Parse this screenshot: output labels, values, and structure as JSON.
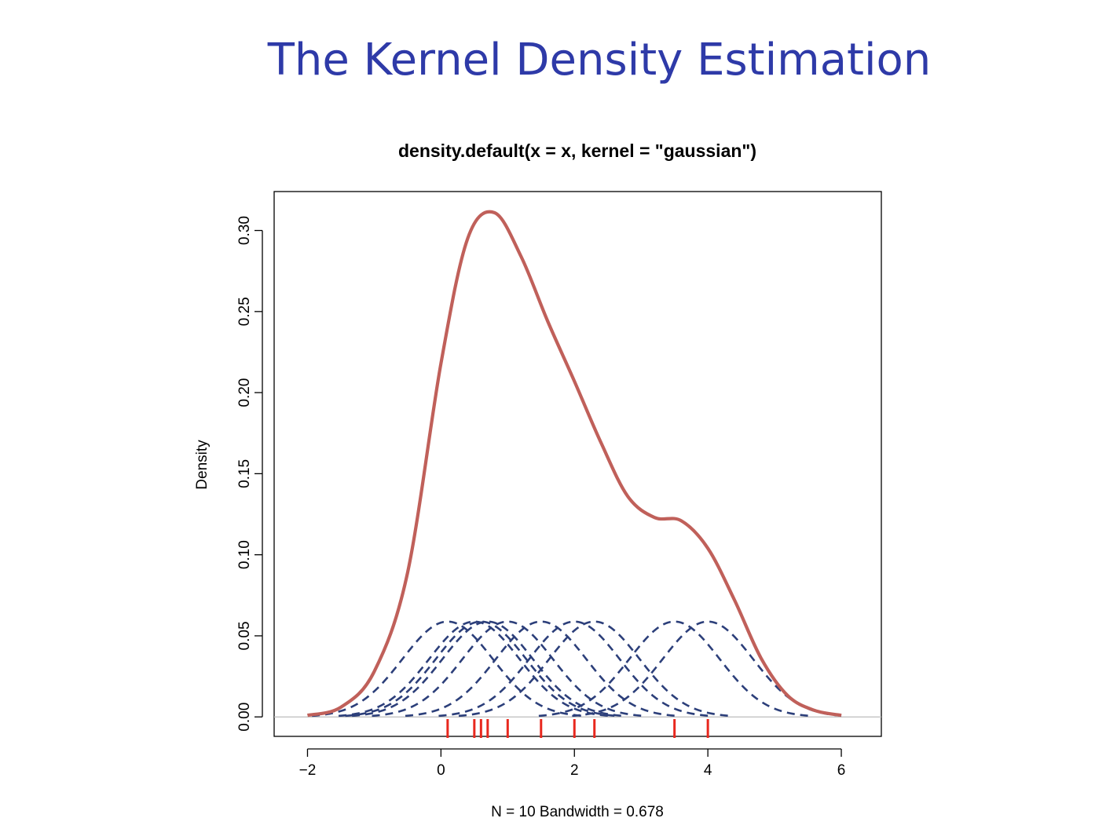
{
  "slide": {
    "title": "The Kernel Density Estimation"
  },
  "chart_data": {
    "type": "line",
    "title": "density.default(x = x, kernel = \"gaussian\")",
    "xlabel": "N = 10   Bandwidth = 0.678",
    "ylabel": "Density",
    "xlim": [
      -2.5,
      6.6
    ],
    "ylim": [
      -0.012,
      0.324
    ],
    "x_ticks": [
      -2,
      0,
      2,
      4,
      6
    ],
    "x_tick_labels": [
      "−2",
      "0",
      "2",
      "4",
      "6"
    ],
    "y_ticks": [
      0.0,
      0.05,
      0.1,
      0.15,
      0.2,
      0.25,
      0.3
    ],
    "y_tick_labels": [
      "0.00",
      "0.05",
      "0.10",
      "0.15",
      "0.20",
      "0.25",
      "0.30"
    ],
    "grid": false,
    "baseline": 0,
    "observations": [
      0.1,
      0.5,
      0.6,
      0.7,
      1.0,
      1.5,
      2.0,
      2.3,
      3.5,
      4.0
    ],
    "bandwidth": 0.678,
    "kernel_height": 0.0588,
    "density": {
      "x": [
        -2.0,
        -1.5,
        -1.0,
        -0.5,
        0.0,
        0.4,
        0.8,
        1.2,
        1.6,
        2.0,
        2.4,
        2.8,
        3.2,
        3.6,
        4.0,
        4.4,
        4.8,
        5.2,
        5.6,
        6.0
      ],
      "y": [
        0.001,
        0.006,
        0.028,
        0.089,
        0.218,
        0.295,
        0.311,
        0.284,
        0.244,
        0.207,
        0.169,
        0.136,
        0.123,
        0.121,
        0.104,
        0.072,
        0.036,
        0.013,
        0.004,
        0.001
      ]
    },
    "colors": {
      "density": "#c0605a",
      "kernels": "#2c3f7a",
      "rug": "#e8281e",
      "baseline": "#bbbbbb"
    }
  }
}
